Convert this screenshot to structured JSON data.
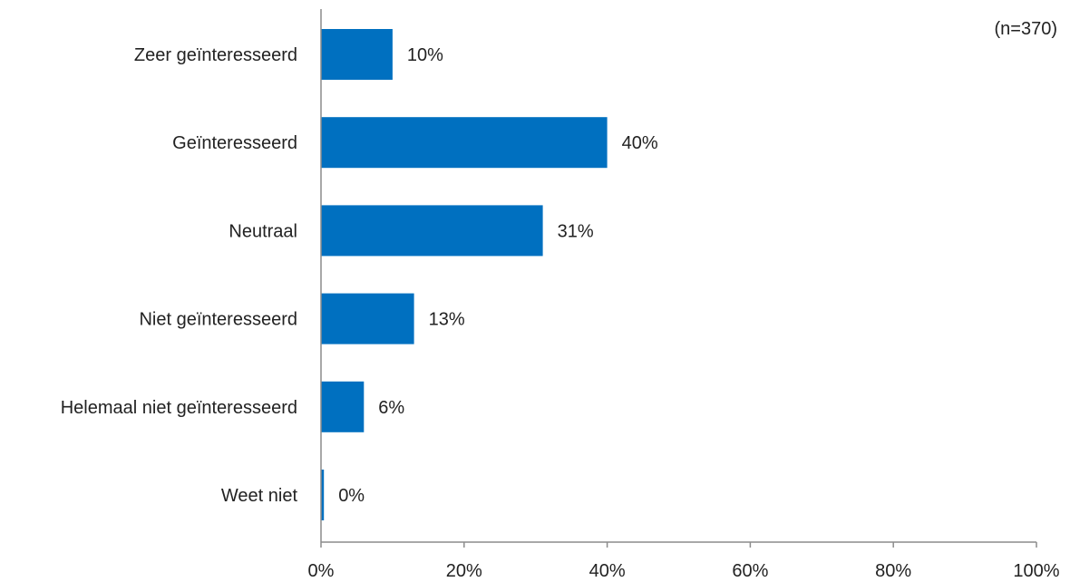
{
  "chart_data": {
    "type": "bar",
    "orientation": "horizontal",
    "categories": [
      "Zeer geïnteresseerd",
      "Geïnteresseerd",
      "Neutraal",
      "Niet geïnteresseerd",
      "Helemaal niet geïnteresseerd",
      "Weet niet"
    ],
    "values": [
      10,
      40,
      31,
      13,
      6,
      0.4
    ],
    "data_labels": [
      "10%",
      "40%",
      "31%",
      "13%",
      "6%",
      "0%"
    ],
    "xlim": [
      0,
      100
    ],
    "ticks": [
      0,
      20,
      40,
      60,
      80,
      100
    ],
    "tick_labels": [
      "0%",
      "20%",
      "40%",
      "60%",
      "80%",
      "100%"
    ],
    "bar_color": "#0070c0",
    "grid": false,
    "annotation": "(n=370)"
  }
}
